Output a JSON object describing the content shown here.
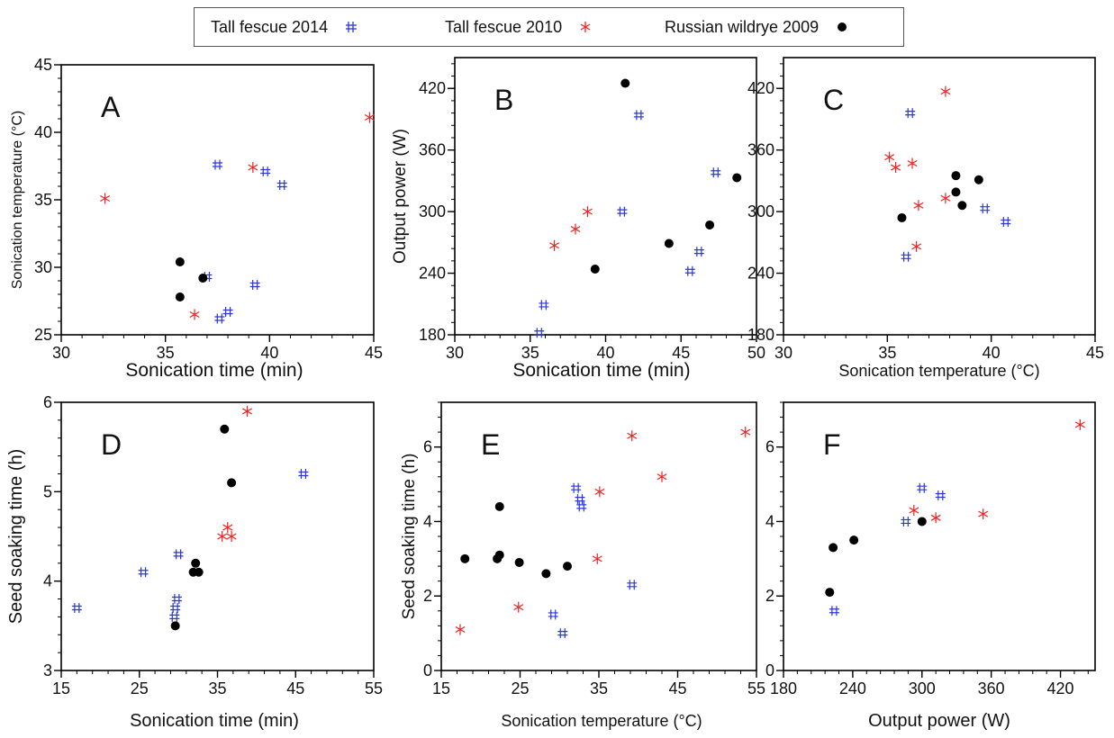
{
  "legend": [
    {
      "label": "Tall fescue 2014",
      "marker": "hash",
      "color": "#2b35e0"
    },
    {
      "label": "Tall fescue 2010",
      "marker": "asterisk",
      "color": "#ee2222"
    },
    {
      "label": "Russian wildrye 2009",
      "marker": "dot",
      "color": "#000000"
    }
  ],
  "chart_data": [
    {
      "type": "scatter",
      "panel": "A",
      "xlabel": "Sonication time (min)",
      "ylabel": "Sonication temperature (°C)",
      "xlim": [
        30,
        45
      ],
      "ylim": [
        25,
        45
      ],
      "xticks": [
        30,
        35,
        40,
        45
      ],
      "yticks": [
        25,
        30,
        35,
        40,
        45
      ],
      "series": [
        {
          "name": "Tall fescue 2014",
          "points": [
            [
              37.5,
              37.6
            ],
            [
              39.8,
              37.1
            ],
            [
              40.6,
              36.1
            ],
            [
              39.3,
              28.7
            ],
            [
              37.0,
              29.3
            ],
            [
              38.0,
              26.7
            ],
            [
              37.6,
              26.2
            ]
          ]
        },
        {
          "name": "Tall fescue 2010",
          "points": [
            [
              32.1,
              35.1
            ],
            [
              39.2,
              37.4
            ],
            [
              44.8,
              41.1
            ],
            [
              36.4,
              26.5
            ]
          ]
        },
        {
          "name": "Russian wildrye 2009",
          "points": [
            [
              35.7,
              30.4
            ],
            [
              35.7,
              27.8
            ],
            [
              36.8,
              29.2
            ]
          ]
        }
      ]
    },
    {
      "type": "scatter",
      "panel": "B",
      "xlabel": "Sonication time (min)",
      "ylabel": "Output power (W)",
      "xlim": [
        30,
        50
      ],
      "ylim": [
        180,
        450
      ],
      "xticks": [
        30,
        35,
        40,
        45,
        50
      ],
      "yticks": [
        180,
        240,
        300,
        360,
        420
      ],
      "series": [
        {
          "name": "Tall fescue 2014",
          "points": [
            [
              35.6,
              182
            ],
            [
              35.9,
              209
            ],
            [
              41.1,
              300
            ],
            [
              42.2,
              394
            ],
            [
              47.3,
              338
            ],
            [
              46.2,
              261
            ],
            [
              45.6,
              242
            ]
          ]
        },
        {
          "name": "Tall fescue 2010",
          "points": [
            [
              36.6,
              267
            ],
            [
              38.0,
              283
            ],
            [
              38.8,
              300
            ]
          ]
        },
        {
          "name": "Russian wildrye 2009",
          "points": [
            [
              39.3,
              244
            ],
            [
              41.3,
              425
            ],
            [
              44.2,
              269
            ],
            [
              46.9,
              287
            ],
            [
              48.7,
              333
            ]
          ]
        }
      ]
    },
    {
      "type": "scatter",
      "panel": "C",
      "xlabel": "Sonication temperature (°C)",
      "ylabel": "",
      "xlim": [
        30,
        45
      ],
      "ylim": [
        180,
        450
      ],
      "xticks": [
        30,
        35,
        40,
        45
      ],
      "yticks": [
        180,
        240,
        300,
        360,
        420
      ],
      "series": [
        {
          "name": "Tall fescue 2014",
          "points": [
            [
              36.1,
              396
            ],
            [
              39.7,
              303
            ],
            [
              40.7,
              290
            ],
            [
              35.9,
              256
            ]
          ]
        },
        {
          "name": "Tall fescue 2010",
          "points": [
            [
              37.8,
              417
            ],
            [
              35.1,
              353
            ],
            [
              35.4,
              343
            ],
            [
              36.2,
              347
            ],
            [
              37.8,
              313
            ],
            [
              36.5,
              306
            ],
            [
              36.4,
              266
            ]
          ]
        },
        {
          "name": "Russian wildrye 2009",
          "points": [
            [
              38.3,
              335
            ],
            [
              39.4,
              331
            ],
            [
              38.3,
              319
            ],
            [
              38.6,
              306
            ],
            [
              35.7,
              294
            ]
          ]
        }
      ]
    },
    {
      "type": "scatter",
      "panel": "D",
      "xlabel": "Sonication time (min)",
      "ylabel": "Seed soaking time (h)",
      "xlim": [
        15,
        55
      ],
      "ylim": [
        3,
        6
      ],
      "xticks": [
        15,
        25,
        35,
        45,
        55
      ],
      "yticks": [
        3,
        4,
        5,
        6
      ],
      "series": [
        {
          "name": "Tall fescue 2014",
          "points": [
            [
              17.0,
              3.7
            ],
            [
              25.5,
              4.1
            ],
            [
              30.0,
              4.3
            ],
            [
              29.8,
              3.8
            ],
            [
              29.6,
              3.7
            ],
            [
              29.5,
              3.6
            ],
            [
              46.0,
              5.2
            ]
          ]
        },
        {
          "name": "Tall fescue 2010",
          "points": [
            [
              38.8,
              5.9
            ],
            [
              36.3,
              4.6
            ],
            [
              35.6,
              4.5
            ],
            [
              36.8,
              4.5
            ]
          ]
        },
        {
          "name": "Russian wildrye 2009",
          "points": [
            [
              35.9,
              5.7
            ],
            [
              36.8,
              5.1
            ],
            [
              32.2,
              4.2
            ],
            [
              31.9,
              4.1
            ],
            [
              32.6,
              4.1
            ],
            [
              29.6,
              3.5
            ]
          ]
        }
      ]
    },
    {
      "type": "scatter",
      "panel": "E",
      "xlabel": "Sonication temperature (°C)",
      "ylabel": "Seed soaking time (h)",
      "xlim": [
        15,
        55
      ],
      "ylim": [
        0,
        7.2
      ],
      "xticks": [
        15,
        25,
        35,
        45,
        55
      ],
      "yticks": [
        0,
        2,
        4,
        6
      ],
      "series": [
        {
          "name": "Tall fescue 2014",
          "points": [
            [
              32.1,
              4.9
            ],
            [
              32.6,
              4.6
            ],
            [
              32.8,
              4.4
            ],
            [
              39.2,
              2.3
            ],
            [
              29.2,
              1.5
            ],
            [
              30.4,
              1.0
            ]
          ]
        },
        {
          "name": "Tall fescue 2010",
          "points": [
            [
              39.2,
              6.3
            ],
            [
              53.6,
              6.4
            ],
            [
              43.0,
              5.2
            ],
            [
              35.1,
              4.8
            ],
            [
              34.8,
              3.0
            ],
            [
              24.8,
              1.7
            ],
            [
              17.4,
              1.1
            ]
          ]
        },
        {
          "name": "Russian wildrye 2009",
          "points": [
            [
              22.4,
              4.4
            ],
            [
              18.0,
              3.0
            ],
            [
              22.1,
              3.0
            ],
            [
              22.4,
              3.1
            ],
            [
              24.9,
              2.9
            ],
            [
              28.3,
              2.6
            ],
            [
              31.0,
              2.8
            ]
          ]
        }
      ]
    },
    {
      "type": "scatter",
      "panel": "F",
      "xlabel": "Output power (W)",
      "ylabel": "",
      "xlim": [
        180,
        450
      ],
      "ylim": [
        0,
        7.2
      ],
      "xticks": [
        180,
        240,
        300,
        360,
        420
      ],
      "yticks": [
        0,
        2,
        4,
        6
      ],
      "series": [
        {
          "name": "Tall fescue 2014",
          "points": [
            [
              300,
              4.9
            ],
            [
              316,
              4.7
            ],
            [
              286,
              4.0
            ],
            [
              224,
              1.6
            ]
          ]
        },
        {
          "name": "Tall fescue 2010",
          "points": [
            [
              437,
              6.6
            ],
            [
              293,
              4.3
            ],
            [
              312,
              4.1
            ],
            [
              353,
              4.2
            ]
          ]
        },
        {
          "name": "Russian wildrye 2009",
          "points": [
            [
              220,
              2.1
            ],
            [
              223,
              3.3
            ],
            [
              241,
              3.5
            ],
            [
              300,
              4.0
            ]
          ]
        }
      ]
    }
  ]
}
